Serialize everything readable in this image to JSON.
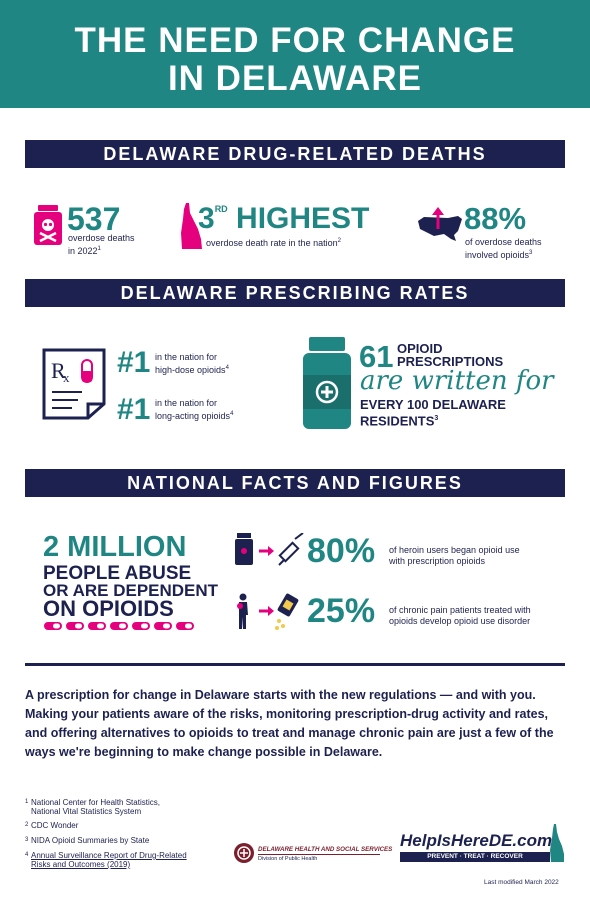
{
  "header": {
    "title_line1": "THE NEED FOR CHANGE",
    "title_line2": "IN DELAWARE"
  },
  "sections": {
    "deaths": "DELAWARE DRUG-RELATED DEATHS",
    "prescribing": "DELAWARE PRESCRIBING RATES",
    "national": "NATIONAL FACTS AND FIGURES"
  },
  "deaths": {
    "stat1": {
      "value": "537",
      "label_line1": "overdose deaths",
      "label_line2": "in 2022",
      "ref": "1"
    },
    "stat2": {
      "value": "3",
      "suffix": "RD",
      "word": "HIGHEST",
      "label": "overdose death rate in the nation",
      "ref": "2"
    },
    "stat3": {
      "value": "88%",
      "label_line1": "of overdose deaths",
      "label_line2": "involved opioids",
      "ref": "3"
    }
  },
  "prescribing": {
    "rank1": {
      "value": "#1",
      "label_line1": "in the nation for",
      "label_line2": "high-dose opioids",
      "ref": "4"
    },
    "rank2": {
      "value": "#1",
      "label_line1": "in the nation for",
      "label_line2": "long-acting opioids",
      "ref": "4"
    },
    "rx": {
      "value": "61",
      "line1": "OPIOID",
      "line2": "PRESCRIPTIONS",
      "script": "are written for",
      "line3": "EVERY 100 DELAWARE",
      "line4": "RESIDENTS",
      "ref": "3"
    }
  },
  "national": {
    "million": {
      "line1": "2 MILLION",
      "line2": "PEOPLE ABUSE",
      "line3": "OR ARE DEPENDENT",
      "line4": "ON OPIOIDS"
    },
    "fact1": {
      "value": "80%",
      "label_line1": "of heroin users began opioid use",
      "label_line2": "with prescription opioids"
    },
    "fact2": {
      "value": "25%",
      "label_line1": "of chronic pain patients treated with",
      "label_line2": "opioids develop opioid use disorder"
    }
  },
  "body_text": "A prescription for change in Delaware starts with the new regulations — and with you. Making your patients aware of the risks, monitoring prescription-drug activity and rates, and offering alternatives to opioids to treat and manage chronic pain are just a few of the ways we're beginning to make change possible in Delaware.",
  "footnotes": [
    {
      "n": "1",
      "line1": "National Center for Health Statistics,",
      "line2": "National Vital Statistics System"
    },
    {
      "n": "2",
      "line1": "CDC Wonder",
      "line2": ""
    },
    {
      "n": "3",
      "line1": "NIDA Opioid Summaries by State",
      "line2": ""
    },
    {
      "n": "4",
      "line1": "Annual Surveillance Report of Drug-Related",
      "line2": "Risks and Outcomes (2019)"
    }
  ],
  "dhss": {
    "line1": "DELAWARE HEALTH AND SOCIAL SERVICES",
    "line2": "Division of Public Health"
  },
  "helpishere": {
    "name": "HelpIsHereDE.com",
    "tagline": "PREVENT · TREAT · RECOVER"
  },
  "last_modified": "Last modified March 2022",
  "colors": {
    "teal": "#1f8683",
    "navy": "#1d2150",
    "pink": "#e5007e"
  }
}
